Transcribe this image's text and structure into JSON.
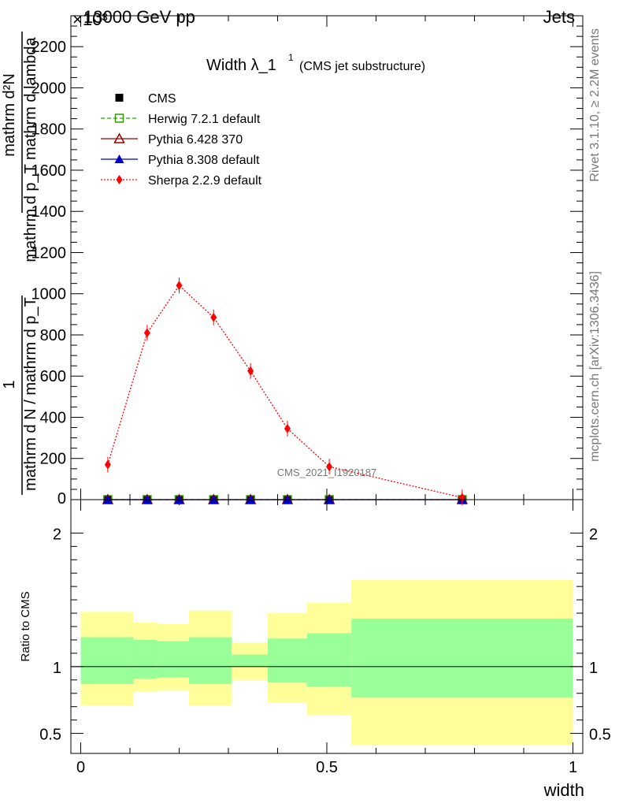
{
  "header": {
    "left": "13000 GeV pp",
    "right": "Jets",
    "exponent": "×10³"
  },
  "side_text": {
    "rivet": "Rivet 3.1.10, ≥ 2.2M events",
    "mcplots": "mcplots.cern.ch [arXiv:1306.3436]"
  },
  "chart_data": [
    {
      "type": "line",
      "title": "Width λ_1",
      "title_sup": "1",
      "subtitle": "(CMS jet substructure)",
      "watermark": "CMS_2021_I1920187",
      "ylabel_parts": [
        "mathrm d²N",
        "mathrm d p_T mathrm d lambda",
        "1",
        "mathrm d N / mathrm d p_T"
      ],
      "ylim": [
        0,
        2350
      ],
      "xlim": [
        -0.02,
        1.02
      ],
      "yticks": [
        200,
        400,
        600,
        800,
        1000,
        1200,
        1400,
        1600,
        1800,
        2000,
        2200
      ],
      "ytick_labels": [
        "200",
        "400",
        "600",
        "800",
        "1000",
        "1200",
        "1400",
        "1600",
        "1800",
        "2000",
        "2200"
      ],
      "y_zero_label": "0",
      "series": [
        {
          "name": "CMS",
          "color": "#000000",
          "marker": "square-filled",
          "x": [
            0.055,
            0.135,
            0.2,
            0.27,
            0.345,
            0.42,
            0.505,
            0.775
          ],
          "y": [
            0,
            0,
            0,
            0,
            0,
            0,
            0,
            0
          ]
        },
        {
          "name": "Herwig 7.2.1 default",
          "color": "#339900",
          "marker": "square-open",
          "line": "dashed",
          "x": [
            0.055,
            0.135,
            0.2,
            0.27,
            0.345,
            0.42,
            0.505,
            0.775
          ],
          "y": [
            0,
            0,
            0,
            0,
            0,
            0,
            0,
            0
          ]
        },
        {
          "name": "Pythia 6.428 370",
          "color": "#990000",
          "marker": "triangle-open",
          "line": "solid",
          "x": [
            0.055,
            0.135,
            0.2,
            0.27,
            0.345,
            0.42,
            0.505,
            0.775
          ],
          "y": [
            0,
            0,
            0,
            0,
            0,
            0,
            0,
            0
          ]
        },
        {
          "name": "Pythia 8.308 default",
          "color": "#0000cc",
          "marker": "triangle-filled",
          "line": "solid",
          "x": [
            0.055,
            0.135,
            0.2,
            0.27,
            0.345,
            0.42,
            0.505,
            0.775
          ],
          "y": [
            0,
            0,
            0,
            0,
            0,
            0,
            0,
            0
          ]
        },
        {
          "name": "Sherpa 2.2.9 default",
          "color": "#ff0000",
          "marker": "diamond-filled",
          "line": "dotted",
          "x": [
            0.055,
            0.135,
            0.2,
            0.27,
            0.345,
            0.42,
            0.505,
            0.775
          ],
          "y": [
            170,
            810,
            1040,
            885,
            625,
            345,
            160,
            10
          ]
        }
      ],
      "grid": false,
      "legend": "top-left"
    },
    {
      "type": "area",
      "ylabel": "Ratio to CMS",
      "xlabel": "width",
      "ylim": [
        0.35,
        2.25
      ],
      "xlim": [
        -0.02,
        1.02
      ],
      "yticks": [
        0.5,
        1,
        2
      ],
      "ytick_labels": [
        "0.5",
        "1",
        "2"
      ],
      "xticks": [
        0,
        0.5,
        1
      ],
      "xtick_labels": [
        "0",
        "0.5",
        "1"
      ],
      "bin_edges": [
        0,
        0.107,
        0.155,
        0.22,
        0.307,
        0.38,
        0.46,
        0.55,
        1.0
      ],
      "band_inner": {
        "color": "#99ff99",
        "low": [
          0.87,
          0.91,
          0.92,
          0.87,
          1.0,
          0.88,
          0.85,
          0.77
        ],
        "high": [
          1.22,
          1.2,
          1.19,
          1.22,
          1.09,
          1.21,
          1.25,
          1.36
        ]
      },
      "band_outer": {
        "color": "#ffff99",
        "low": [
          0.71,
          0.81,
          0.82,
          0.71,
          0.9,
          0.73,
          0.64,
          0.41
        ],
        "high": [
          1.41,
          1.33,
          1.32,
          1.42,
          1.18,
          1.4,
          1.48,
          1.65
        ]
      },
      "reference": 1
    }
  ]
}
